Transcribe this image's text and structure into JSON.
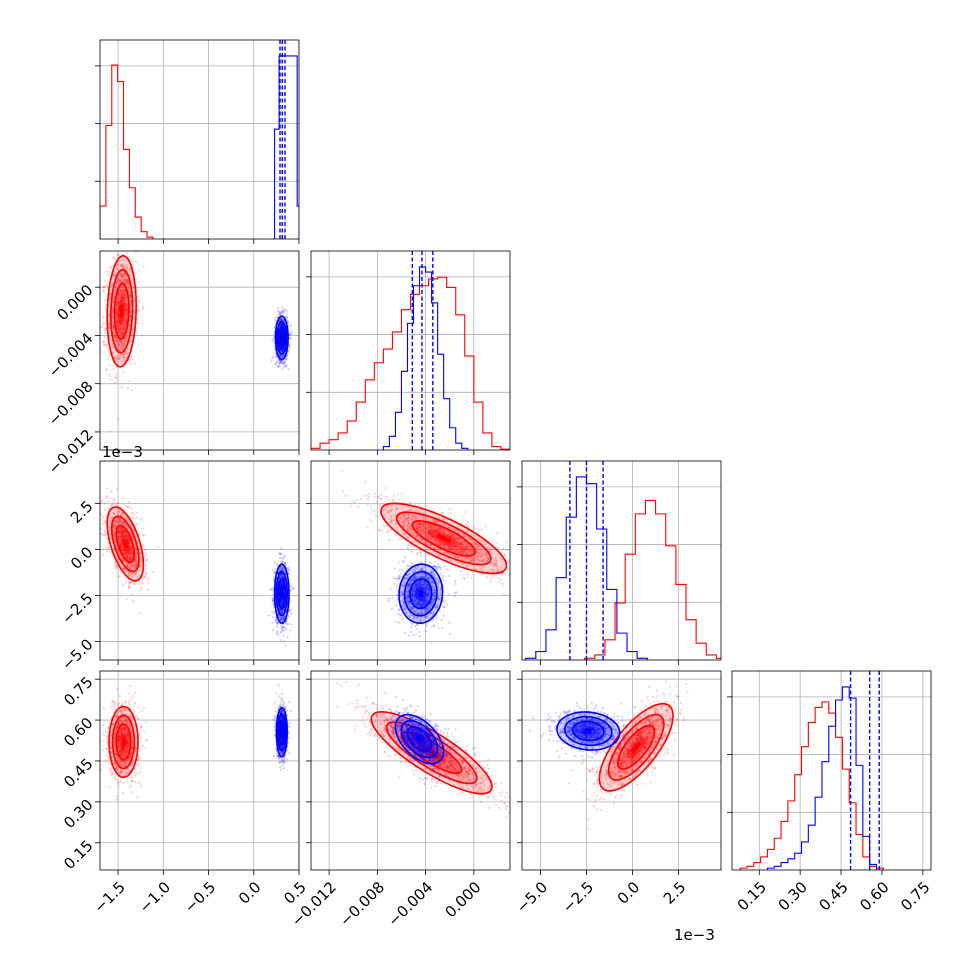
{
  "figure": {
    "type": "corner",
    "colors": {
      "red": "#ff0000",
      "blue": "#0000ff",
      "grid": "#b0b0b0",
      "axis": "#000000"
    }
  },
  "chart_data": {
    "type": "corner",
    "series": [
      {
        "name": "",
        "color": "#ff0000"
      },
      {
        "name": "",
        "color": "#0000ff"
      }
    ],
    "params": [
      {
        "id": "p1",
        "range": [
          -1.7,
          0.5
        ],
        "ticks": [
          -1.5,
          -1.0,
          -0.5,
          0.0,
          0.5
        ],
        "tick_labels": [
          "−1.5",
          "−1.0",
          "−0.5",
          "0.0",
          "0.5"
        ],
        "offset": ""
      },
      {
        "id": "p2",
        "range": [
          -0.0135,
          0.003
        ],
        "ticks": [
          -0.012,
          -0.008,
          -0.004,
          0.0
        ],
        "tick_labels": [
          "−0.012",
          "−0.008",
          "−0.004",
          "0.000"
        ],
        "offset": ""
      },
      {
        "id": "p3",
        "range": [
          -6.0,
          4.8
        ],
        "ticks": [
          -5.0,
          -2.5,
          0.0,
          2.5
        ],
        "tick_labels": [
          "−5.0",
          "−2.5",
          "0.0",
          "2.5"
        ],
        "offset": "1e−3"
      },
      {
        "id": "p4",
        "range": [
          0.05,
          0.78
        ],
        "ticks": [
          0.15,
          0.3,
          0.45,
          0.6,
          0.75
        ],
        "tick_labels": [
          "0.15",
          "0.30",
          "0.45",
          "0.60",
          "0.75"
        ],
        "offset": ""
      }
    ],
    "hist": [
      {
        "red": {
          "x0": -1.7,
          "bw": 0.065,
          "counts": [
            0.18,
            0.62,
            0.95,
            0.86,
            0.49,
            0.28,
            0.12,
            0.04,
            0.01
          ]
        },
        "blue": {
          "x0": 0.23,
          "bw": 0.05,
          "counts": [
            0.6,
            1.0,
            1.0,
            1.0,
            1.0,
            0.18
          ]
        },
        "quantiles": [
          0.29,
          0.315,
          0.345
        ]
      },
      {
        "red": {
          "x0": -0.0135,
          "bw": 0.00075,
          "counts": [
            0.01,
            0.04,
            0.06,
            0.1,
            0.17,
            0.28,
            0.41,
            0.51,
            0.59,
            0.69,
            0.82,
            0.91,
            0.96,
            1.0,
            1.01,
            0.95,
            0.79,
            0.55,
            0.28,
            0.1,
            0.02,
            0.005
          ]
        },
        "blue": {
          "x0": -0.0075,
          "bw": 0.0005,
          "counts": [
            0.02,
            0.08,
            0.22,
            0.46,
            0.74,
            0.96,
            1.07,
            1.04,
            0.86,
            0.56,
            0.3,
            0.13,
            0.04,
            0.01
          ]
        },
        "quantiles": [
          -0.0051,
          -0.0043,
          -0.0034
        ]
      },
      {
        "red": {
          "x0": -2.6,
          "bw": 0.55,
          "counts": [
            0.01,
            0.03,
            0.12,
            0.34,
            0.63,
            0.87,
            0.95,
            0.87,
            0.68,
            0.45,
            0.24,
            0.1,
            0.03,
            0.01
          ]
        },
        "blue": {
          "x0": -5.8,
          "bw": 0.55,
          "counts": [
            0.01,
            0.05,
            0.18,
            0.49,
            0.85,
            1.09,
            1.05,
            0.78,
            0.42,
            0.16,
            0.05,
            0.01
          ]
        },
        "quantiles": [
          -3.4,
          -2.5,
          -1.6
        ]
      },
      {
        "red": {
          "x0": 0.08,
          "bw": 0.025,
          "counts": [
            0.01,
            0.02,
            0.04,
            0.07,
            0.11,
            0.17,
            0.26,
            0.37,
            0.51,
            0.66,
            0.79,
            0.87,
            0.9,
            0.84,
            0.71,
            0.54,
            0.36,
            0.19,
            0.07,
            0.02,
            0.01
          ]
        },
        "blue": {
          "x0": 0.18,
          "bw": 0.025,
          "counts": [
            0.01,
            0.02,
            0.04,
            0.06,
            0.09,
            0.15,
            0.24,
            0.39,
            0.58,
            0.77,
            0.91,
            0.98,
            0.92,
            0.56,
            0.18,
            0.03
          ]
        },
        "quantiles": [
          0.485,
          0.555,
          0.59
        ]
      }
    ],
    "pairs": [
      {
        "row": 1,
        "col": 0,
        "red": {
          "mean": [
            -1.46,
            -0.002
          ],
          "sd": [
            0.08,
            0.0023
          ],
          "corr": 0.1
        },
        "blue": {
          "mean": [
            0.31,
            -0.0042
          ],
          "sd": [
            0.035,
            0.0009
          ],
          "corr": 0.0
        }
      },
      {
        "row": 2,
        "col": 0,
        "red": {
          "mean": [
            -1.42,
            0.3
          ],
          "sd": [
            0.1,
            1.0
          ],
          "corr": -0.55
        },
        "blue": {
          "mean": [
            0.31,
            -2.4
          ],
          "sd": [
            0.04,
            0.8
          ],
          "corr": 0.0
        }
      },
      {
        "row": 2,
        "col": 1,
        "red": {
          "mean": [
            -0.0025,
            0.6
          ],
          "sd": [
            0.0026,
            0.95
          ],
          "corr": -0.78
        },
        "blue": {
          "mean": [
            -0.0044,
            -2.4
          ],
          "sd": [
            0.0009,
            0.8
          ],
          "corr": 0.05
        }
      },
      {
        "row": 3,
        "col": 0,
        "red": {
          "mean": [
            -1.44,
            0.52
          ],
          "sd": [
            0.08,
            0.065
          ],
          "corr": 0.0
        },
        "blue": {
          "mean": [
            0.31,
            0.555
          ],
          "sd": [
            0.03,
            0.045
          ],
          "corr": 0.0
        }
      },
      {
        "row": 3,
        "col": 1,
        "red": {
          "mean": [
            -0.0035,
            0.48
          ],
          "sd": [
            0.0025,
            0.075
          ],
          "corr": -0.83
        },
        "blue": {
          "mean": [
            -0.0045,
            0.53
          ],
          "sd": [
            0.001,
            0.045
          ],
          "corr": -0.5
        }
      },
      {
        "row": 3,
        "col": 2,
        "red": {
          "mean": [
            0.2,
            0.5
          ],
          "sd": [
            1.0,
            0.08
          ],
          "corr": 0.72
        },
        "blue": {
          "mean": [
            -2.4,
            0.56
          ],
          "sd": [
            0.85,
            0.035
          ],
          "corr": -0.1
        }
      }
    ]
  }
}
